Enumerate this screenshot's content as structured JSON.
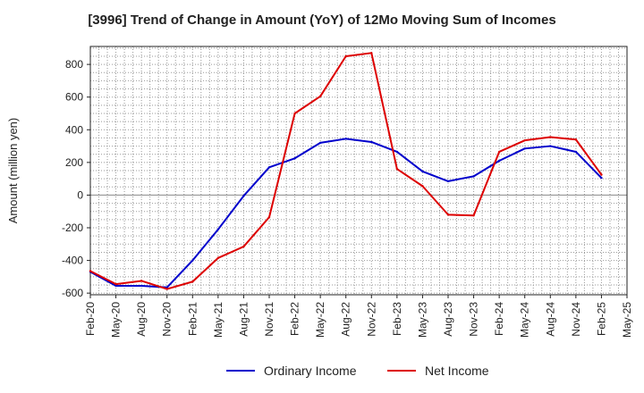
{
  "chart_data": {
    "type": "line",
    "title": "[3996]  Trend of Change in Amount (YoY) of 12Mo Moving Sum of Incomes",
    "ylabel": "Amount (million yen)",
    "xlabel": "",
    "categories": [
      "Feb-20",
      "May-20",
      "Aug-20",
      "Nov-20",
      "Feb-21",
      "May-21",
      "Aug-21",
      "Nov-21",
      "Feb-22",
      "May-22",
      "Aug-22",
      "Nov-22",
      "Feb-23",
      "May-23",
      "Aug-23",
      "Nov-23",
      "Feb-24",
      "May-24",
      "Aug-24",
      "Nov-24",
      "Feb-25",
      "May-25"
    ],
    "ylim": [
      -610,
      910
    ],
    "yticks": [
      -600,
      -400,
      -200,
      0,
      200,
      400,
      600,
      800
    ],
    "grid": true,
    "legend_position": "bottom",
    "series": [
      {
        "name": "Ordinary Income",
        "color": "#0000cc",
        "values": [
          -470,
          -555,
          -555,
          -565,
          -400,
          -210,
          -5,
          170,
          225,
          320,
          345,
          325,
          265,
          145,
          85,
          115,
          210,
          285,
          300,
          265,
          105,
          null
        ]
      },
      {
        "name": "Net Income",
        "color": "#dd0000",
        "values": [
          -465,
          -545,
          -525,
          -575,
          -530,
          -385,
          -315,
          -135,
          500,
          605,
          850,
          870,
          160,
          55,
          -120,
          -125,
          265,
          335,
          355,
          340,
          125,
          null
        ]
      }
    ]
  }
}
